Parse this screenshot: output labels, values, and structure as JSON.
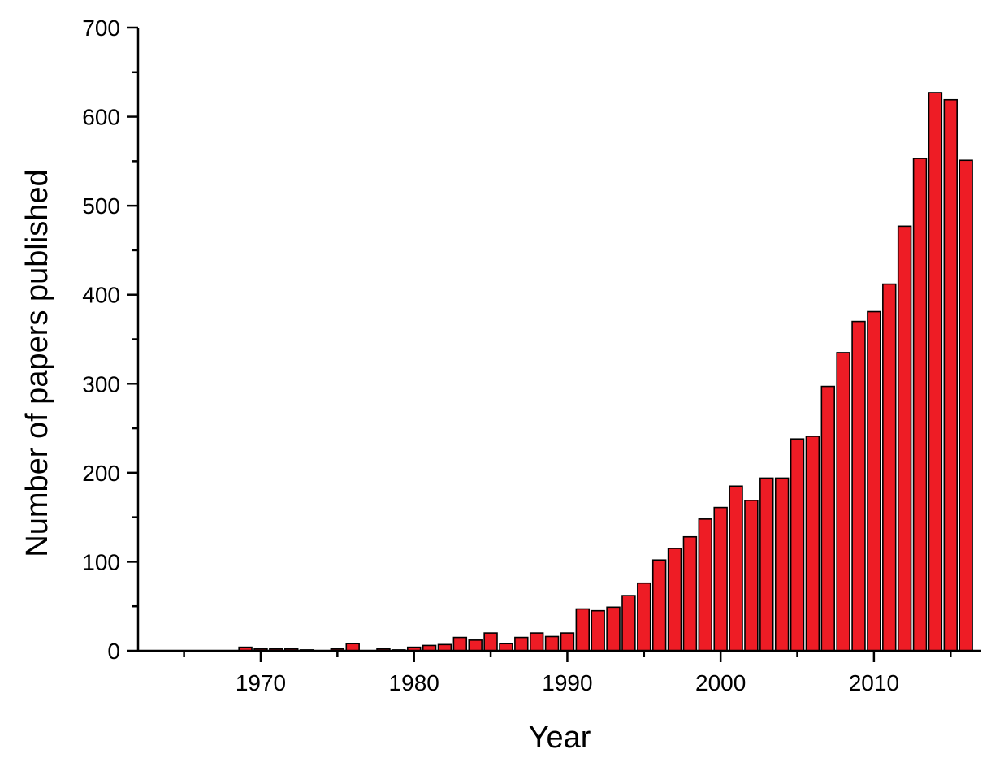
{
  "chart_data": {
    "type": "bar",
    "xlabel": "Year",
    "ylabel": "Number of papers published",
    "xlim": [
      1962,
      2017
    ],
    "ylim": [
      0,
      700
    ],
    "xticks": [
      1970,
      1980,
      1990,
      2000,
      2010
    ],
    "yticks": [
      0,
      100,
      200,
      300,
      400,
      500,
      600,
      700
    ],
    "grid": false,
    "bar_color": "#ee1c25",
    "bar_edge_color": "#000000",
    "x": [
      1969,
      1970,
      1971,
      1972,
      1973,
      1975,
      1976,
      1978,
      1979,
      1980,
      1981,
      1982,
      1983,
      1984,
      1985,
      1986,
      1987,
      1988,
      1989,
      1990,
      1991,
      1992,
      1993,
      1994,
      1995,
      1996,
      1997,
      1998,
      1999,
      2000,
      2001,
      2002,
      2003,
      2004,
      2005,
      2006,
      2007,
      2008,
      2009,
      2010,
      2011,
      2012,
      2013,
      2014,
      2015,
      2016
    ],
    "values": [
      4,
      2,
      2,
      2,
      1,
      2,
      8,
      2,
      1,
      4,
      6,
      7,
      15,
      12,
      20,
      8,
      15,
      20,
      16,
      20,
      47,
      45,
      49,
      62,
      76,
      102,
      115,
      128,
      148,
      161,
      185,
      169,
      194,
      194,
      238,
      241,
      297,
      335,
      370,
      381,
      412,
      477,
      553,
      627,
      619,
      551
    ]
  }
}
